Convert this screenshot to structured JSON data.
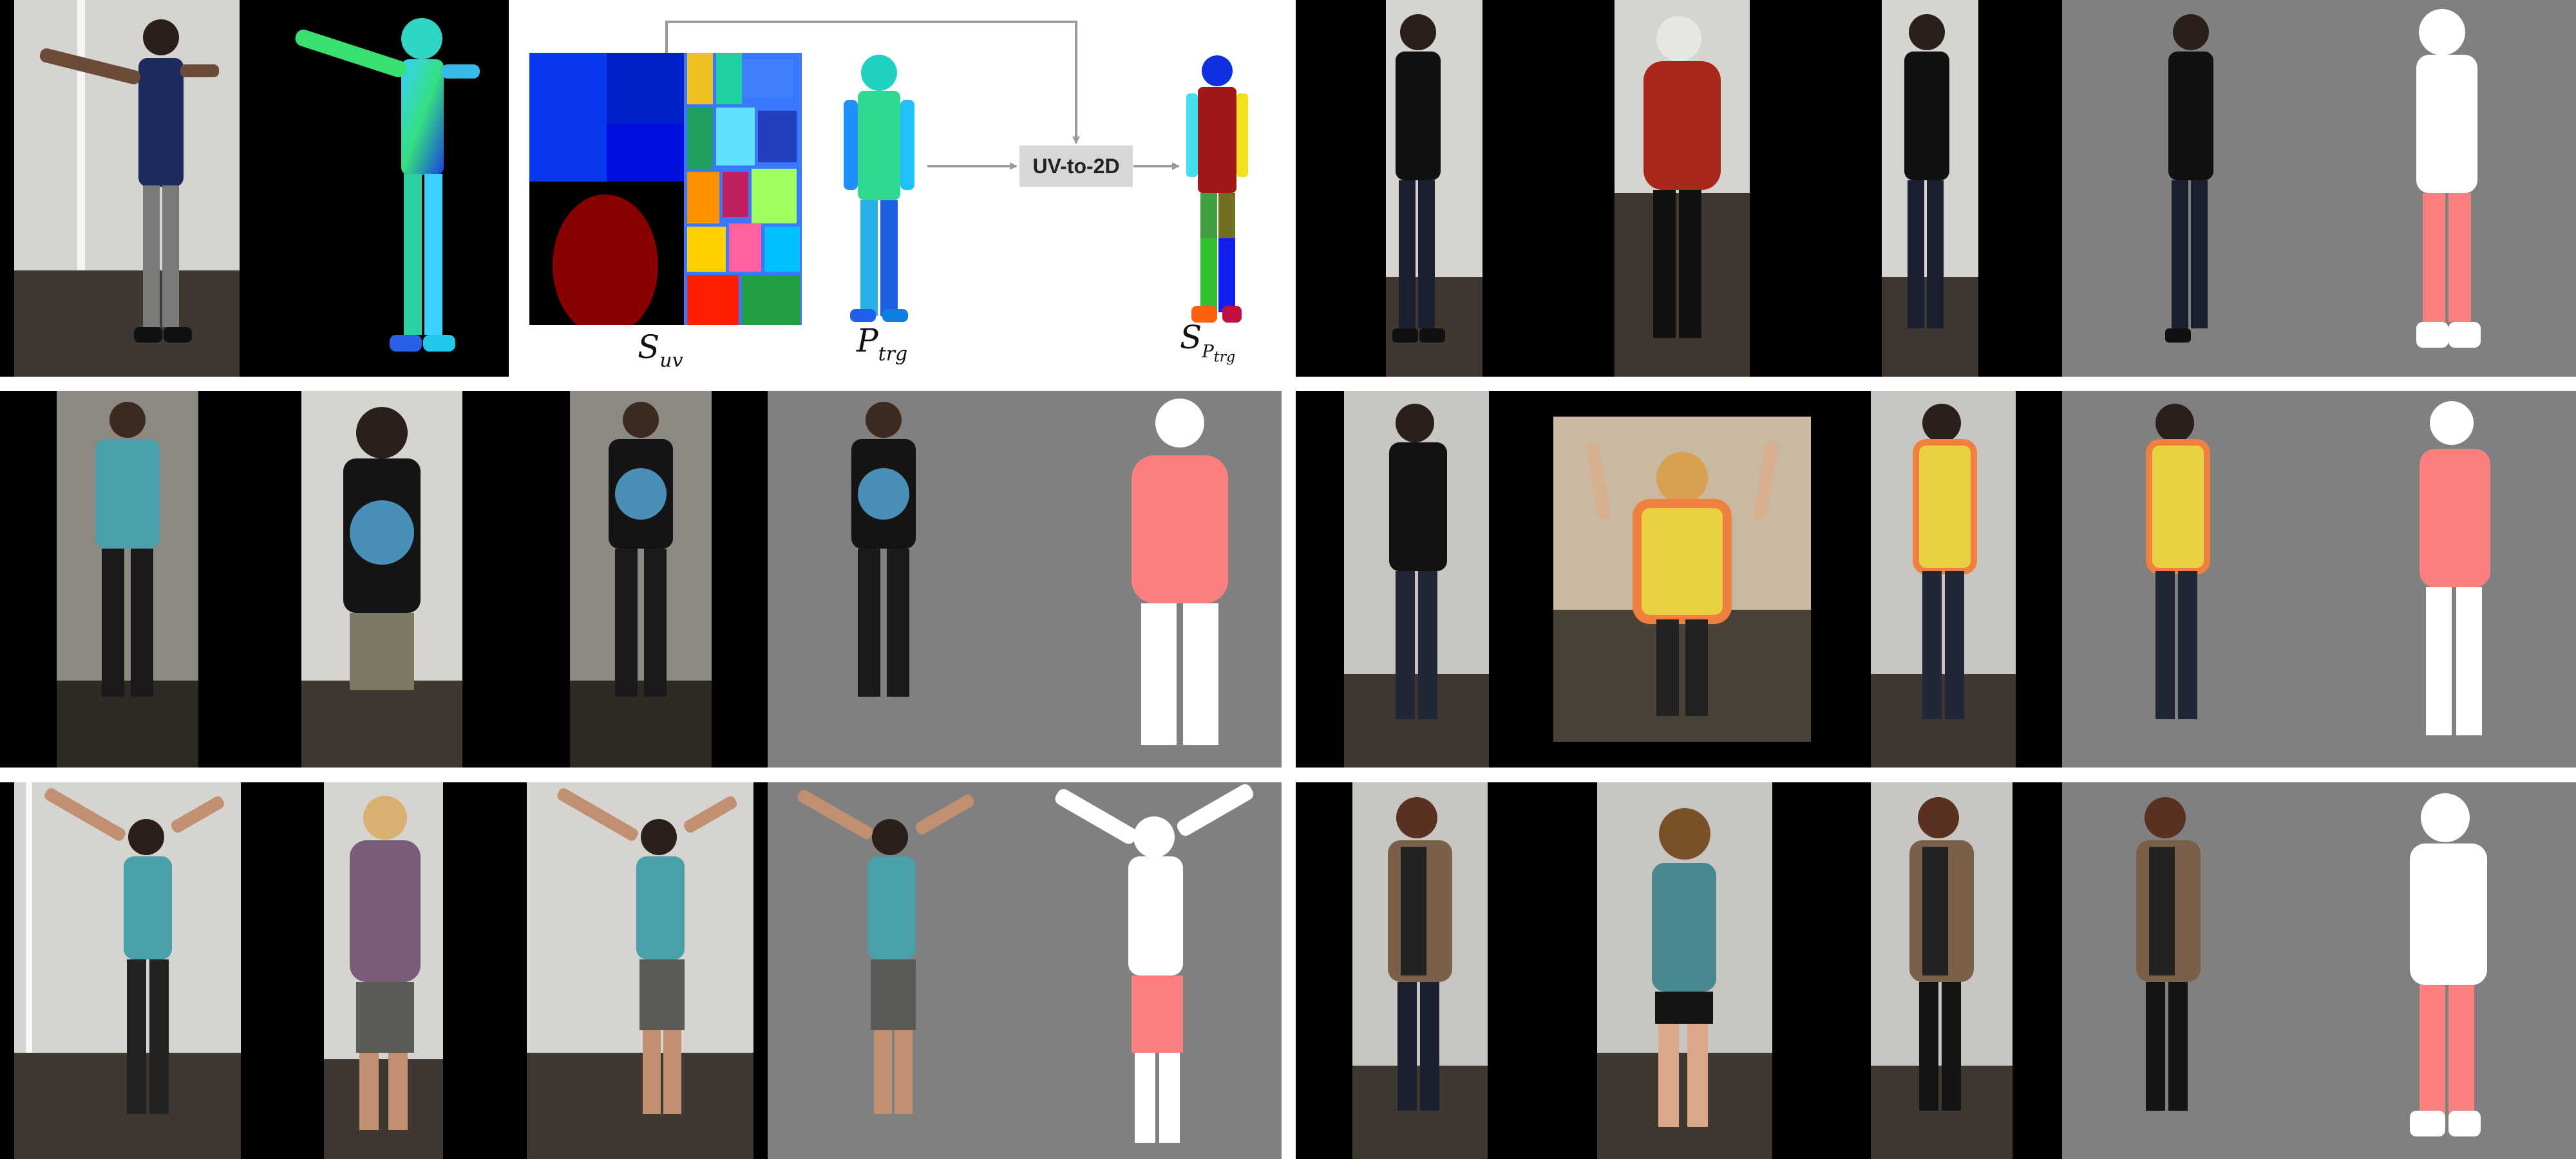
{
  "pipeline": {
    "suv_symbol": "S",
    "suv_sub": "uv",
    "ptrg_symbol": "P",
    "ptrg_sub": "trg",
    "sptrg_symbol": "S",
    "sptrg_sub_symbol": "P",
    "sptrg_sub_sub": "trg",
    "uv_to_2d_label": "UV-to-2D"
  },
  "colors": {
    "gray_bg": "#808080",
    "salmon": "#fa8080",
    "white_mask": "#ffffff",
    "black": "#000000",
    "tent": "#d6d4d0",
    "ground": "#3e3830",
    "arrow": "#9a9a9a"
  },
  "rows": [
    {
      "panels": [
        "pipeline-overview",
        "left-figure-rotation-result"
      ]
    },
    {
      "panels": [
        "tshirt-transfer-result",
        "safety-vest-transfer-result"
      ]
    },
    {
      "panels": [
        "raised-arms-shorts-result",
        "floral-cardigan-result"
      ]
    }
  ]
}
